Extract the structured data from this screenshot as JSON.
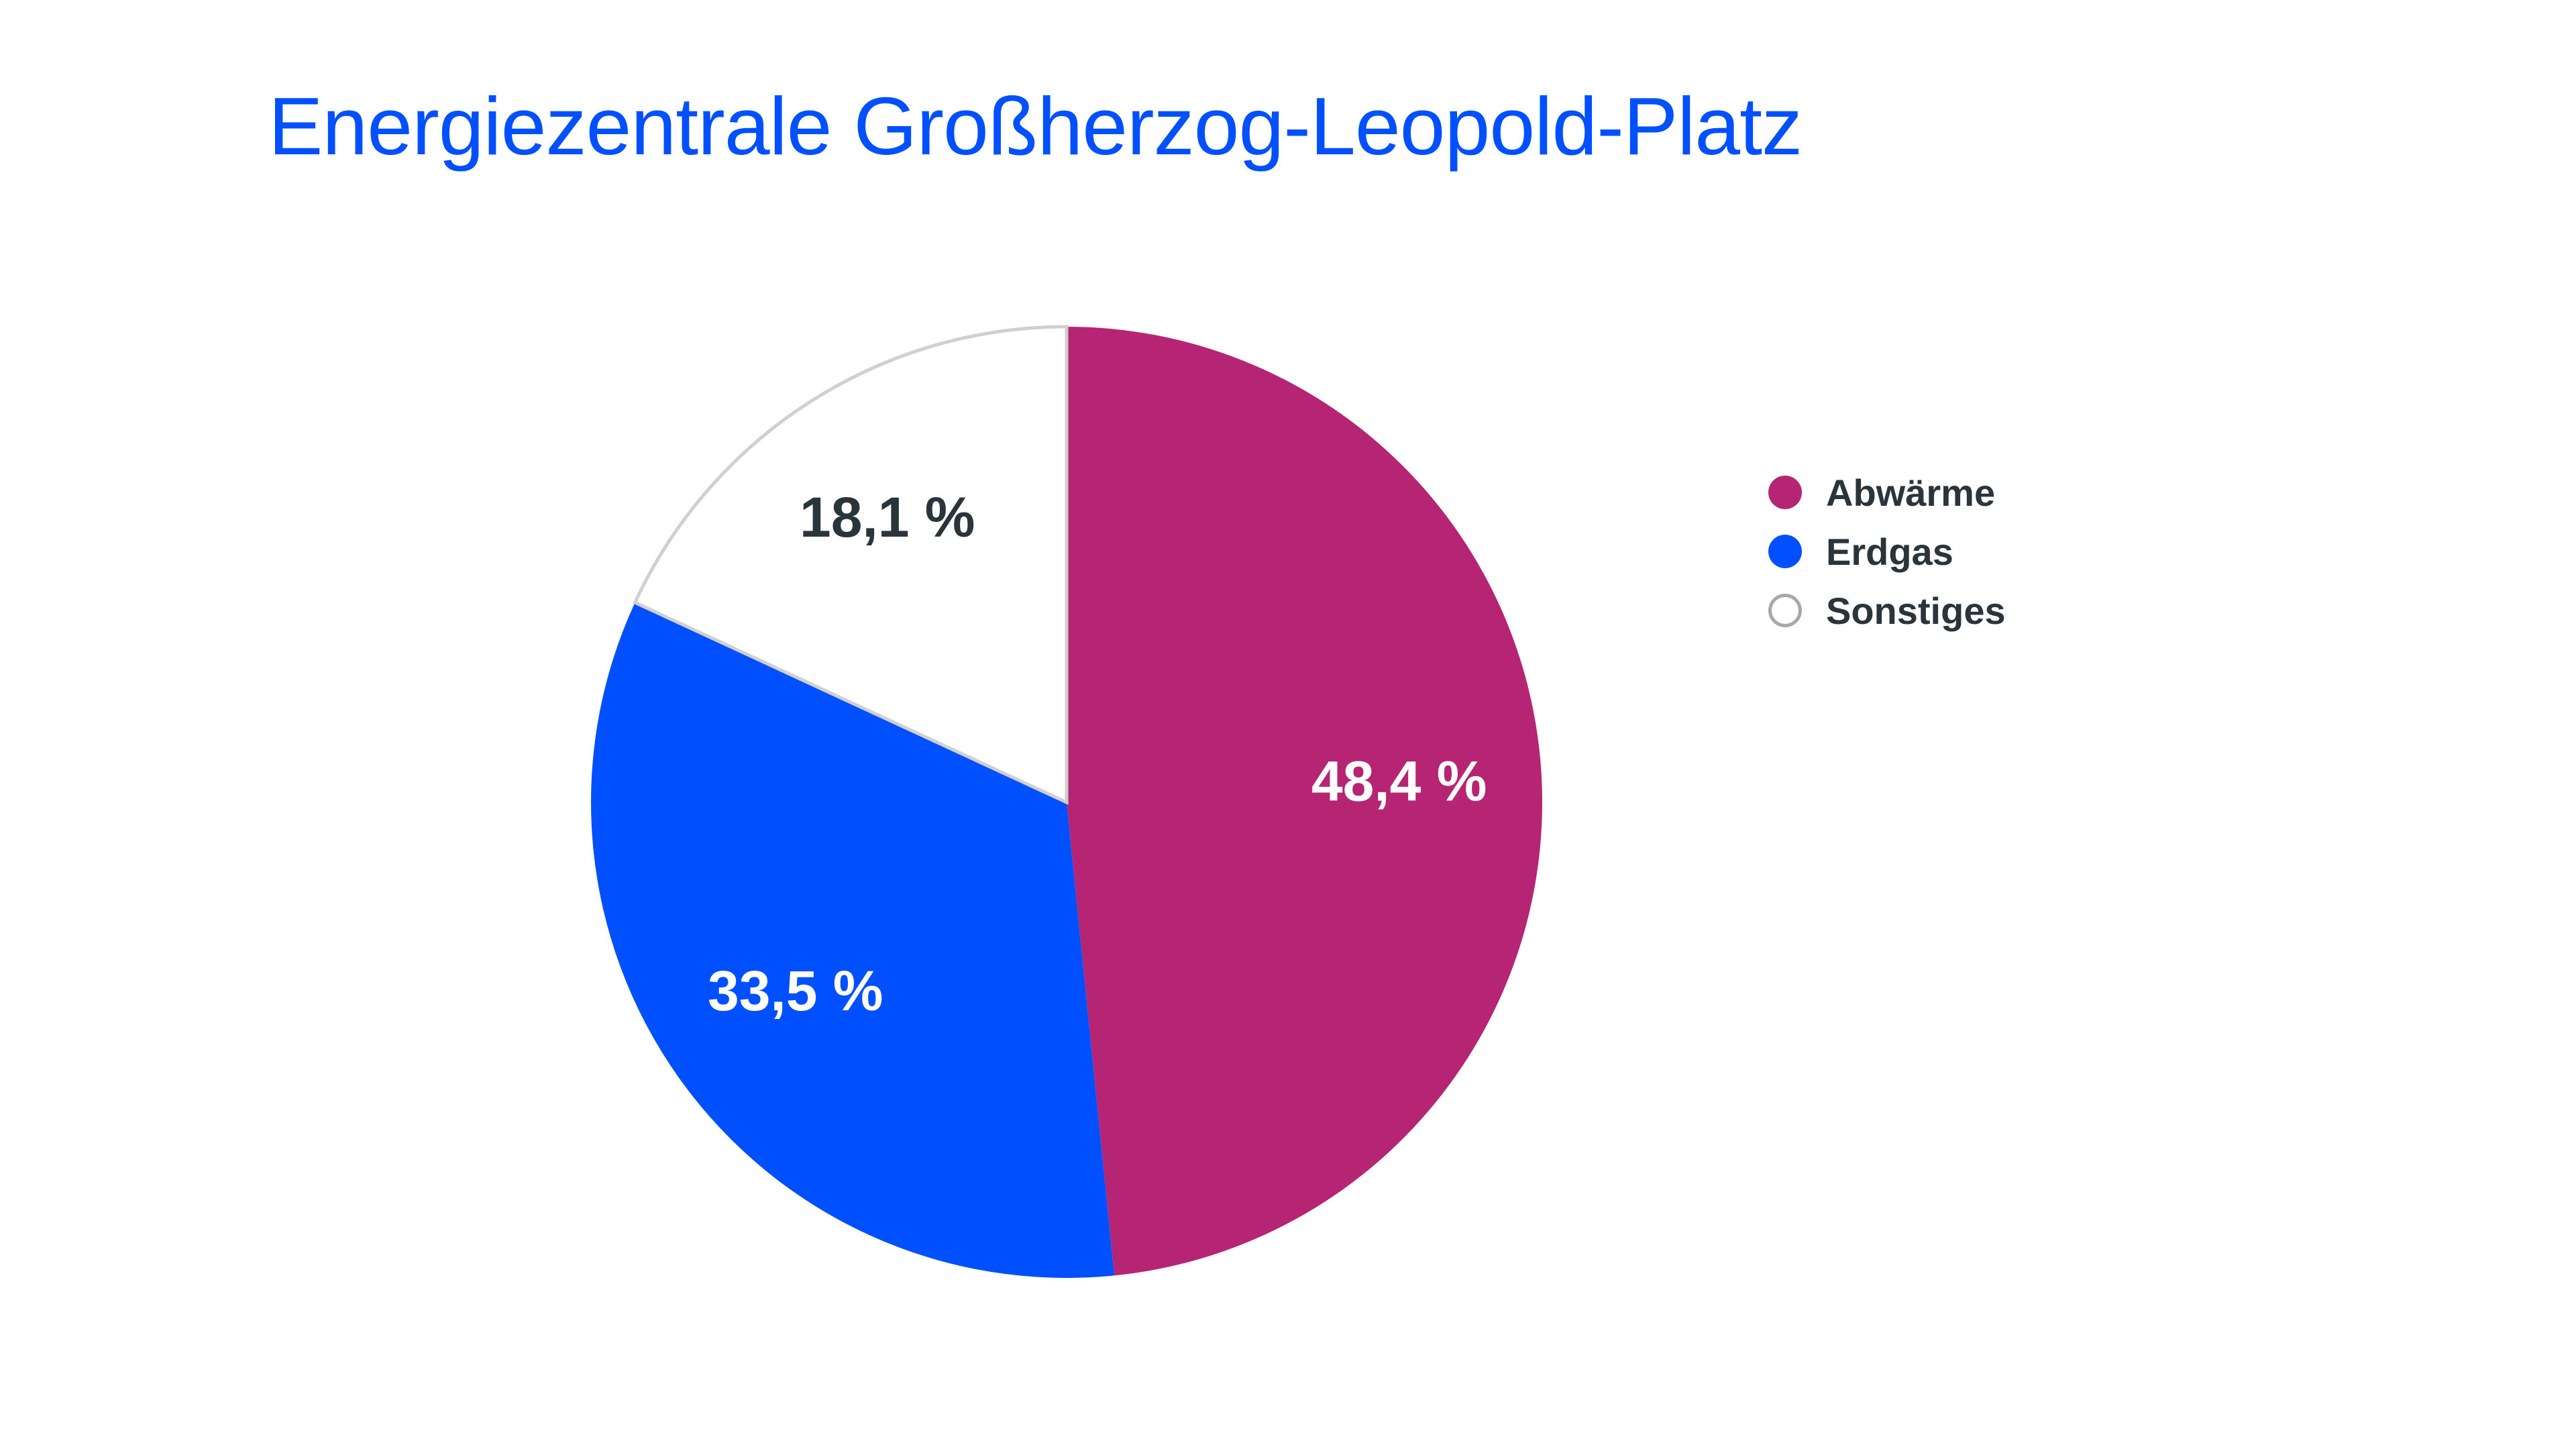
{
  "chart_data": {
    "type": "pie",
    "title": "Energiezentrale Großherzog-Leopold-Platz",
    "slices": [
      {
        "label": "Abwärme",
        "value": 48.4,
        "display": "48,4 %",
        "color": "#b62574",
        "label_color": "#ffffff"
      },
      {
        "label": "Erdgas",
        "value": 33.5,
        "display": "33,5 %",
        "color": "#0050ff",
        "label_color": "#ffffff"
      },
      {
        "label": "Sonstiges",
        "value": 18.1,
        "display": "18,1 %",
        "color": "#ffffff",
        "label_color": "#2a343b",
        "border": "#d0d0d0"
      }
    ],
    "start_angle": "top",
    "direction": "clockwise",
    "legend_position": "right"
  }
}
